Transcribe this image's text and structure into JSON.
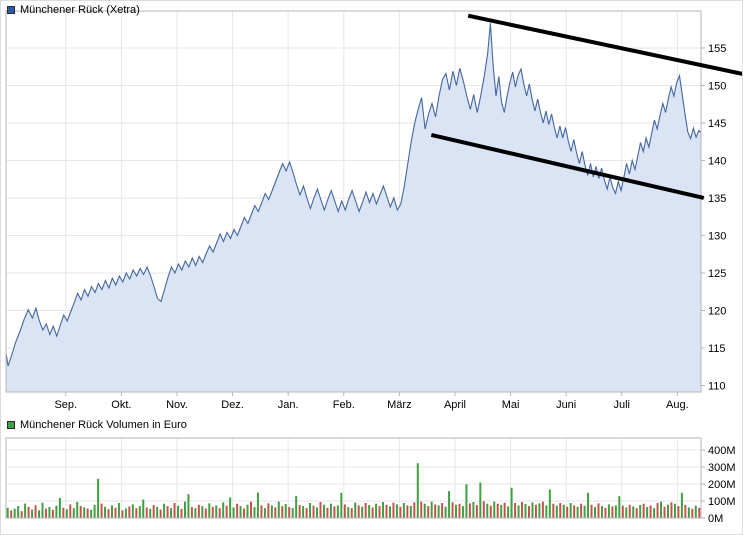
{
  "page": {
    "background": "#ffffff"
  },
  "chart_data": [
    {
      "type": "area",
      "title": "Münchener Rück (Xetra)",
      "legend_position": "top-left",
      "grid": true,
      "x_axis": {
        "labels": [
          "Sep.",
          "Okt.",
          "Nov.",
          "Dez.",
          "Jan.",
          "Feb.",
          "März",
          "April",
          "Mai",
          "Juni",
          "Juli",
          "Aug."
        ]
      },
      "y_axis": {
        "side": "right",
        "ticks": [
          110,
          115,
          120,
          125,
          130,
          135,
          140,
          145,
          150,
          155
        ],
        "range": [
          109.13,
          159.93
        ]
      },
      "series": [
        {
          "name": "Münchener Rück (Xetra)",
          "points": [
            [
              0.0,
              114.3
            ],
            [
              0.003,
              112.6
            ],
            [
              0.008,
              114.0
            ],
            [
              0.014,
              115.8
            ],
            [
              0.02,
              117.2
            ],
            [
              0.026,
              118.8
            ],
            [
              0.032,
              120.1
            ],
            [
              0.038,
              119.0
            ],
            [
              0.043,
              120.3
            ],
            [
              0.048,
              118.6
            ],
            [
              0.053,
              117.4
            ],
            [
              0.058,
              118.2
            ],
            [
              0.063,
              116.8
            ],
            [
              0.068,
              117.9
            ],
            [
              0.073,
              116.6
            ],
            [
              0.078,
              118.0
            ],
            [
              0.083,
              119.4
            ],
            [
              0.088,
              118.6
            ],
            [
              0.093,
              119.8
            ],
            [
              0.098,
              121.0
            ],
            [
              0.103,
              122.3
            ],
            [
              0.108,
              121.4
            ],
            [
              0.113,
              122.8
            ],
            [
              0.118,
              121.9
            ],
            [
              0.123,
              123.2
            ],
            [
              0.128,
              122.4
            ],
            [
              0.133,
              123.6
            ],
            [
              0.138,
              122.8
            ],
            [
              0.143,
              124.0
            ],
            [
              0.148,
              123.0
            ],
            [
              0.153,
              124.3
            ],
            [
              0.158,
              123.4
            ],
            [
              0.163,
              124.6
            ],
            [
              0.168,
              123.8
            ],
            [
              0.173,
              125.0
            ],
            [
              0.178,
              124.2
            ],
            [
              0.183,
              125.4
            ],
            [
              0.188,
              124.6
            ],
            [
              0.193,
              125.6
            ],
            [
              0.198,
              124.8
            ],
            [
              0.203,
              125.8
            ],
            [
              0.208,
              124.6
            ],
            [
              0.213,
              123.2
            ],
            [
              0.218,
              121.6
            ],
            [
              0.223,
              121.2
            ],
            [
              0.228,
              122.8
            ],
            [
              0.233,
              124.4
            ],
            [
              0.238,
              125.8
            ],
            [
              0.243,
              125.0
            ],
            [
              0.248,
              126.2
            ],
            [
              0.253,
              125.4
            ],
            [
              0.258,
              126.6
            ],
            [
              0.263,
              125.8
            ],
            [
              0.268,
              127.0
            ],
            [
              0.273,
              126.0
            ],
            [
              0.278,
              127.2
            ],
            [
              0.283,
              126.4
            ],
            [
              0.288,
              127.6
            ],
            [
              0.293,
              128.6
            ],
            [
              0.298,
              127.8
            ],
            [
              0.303,
              129.0
            ],
            [
              0.308,
              130.2
            ],
            [
              0.313,
              129.2
            ],
            [
              0.318,
              130.4
            ],
            [
              0.323,
              129.6
            ],
            [
              0.328,
              130.8
            ],
            [
              0.333,
              130.0
            ],
            [
              0.338,
              131.2
            ],
            [
              0.343,
              132.4
            ],
            [
              0.348,
              131.6
            ],
            [
              0.353,
              132.8
            ],
            [
              0.358,
              134.0
            ],
            [
              0.363,
              133.2
            ],
            [
              0.368,
              134.4
            ],
            [
              0.373,
              135.6
            ],
            [
              0.378,
              134.8
            ],
            [
              0.383,
              136.0
            ],
            [
              0.388,
              137.2
            ],
            [
              0.393,
              138.4
            ],
            [
              0.398,
              139.6
            ],
            [
              0.403,
              138.6
            ],
            [
              0.408,
              139.8
            ],
            [
              0.413,
              138.4
            ],
            [
              0.418,
              136.8
            ],
            [
              0.423,
              135.4
            ],
            [
              0.428,
              136.6
            ],
            [
              0.433,
              135.0
            ],
            [
              0.438,
              133.6
            ],
            [
              0.443,
              135.0
            ],
            [
              0.448,
              136.2
            ],
            [
              0.453,
              134.8
            ],
            [
              0.458,
              133.4
            ],
            [
              0.463,
              134.8
            ],
            [
              0.468,
              136.0
            ],
            [
              0.473,
              134.6
            ],
            [
              0.478,
              133.2
            ],
            [
              0.483,
              134.6
            ],
            [
              0.488,
              133.4
            ],
            [
              0.493,
              134.8
            ],
            [
              0.498,
              136.0
            ],
            [
              0.503,
              134.6
            ],
            [
              0.508,
              133.2
            ],
            [
              0.513,
              134.4
            ],
            [
              0.518,
              135.8
            ],
            [
              0.523,
              134.4
            ],
            [
              0.528,
              135.6
            ],
            [
              0.533,
              134.2
            ],
            [
              0.538,
              135.4
            ],
            [
              0.543,
              136.6
            ],
            [
              0.548,
              135.2
            ],
            [
              0.553,
              133.8
            ],
            [
              0.558,
              135.0
            ],
            [
              0.563,
              133.4
            ],
            [
              0.568,
              134.2
            ],
            [
              0.573,
              136.5
            ],
            [
              0.578,
              139.5
            ],
            [
              0.583,
              142.5
            ],
            [
              0.588,
              145.0
            ],
            [
              0.593,
              146.8
            ],
            [
              0.598,
              148.4
            ],
            [
              0.603,
              144.2
            ],
            [
              0.608,
              146.2
            ],
            [
              0.613,
              147.6
            ],
            [
              0.618,
              145.8
            ],
            [
              0.623,
              148.6
            ],
            [
              0.628,
              150.8
            ],
            [
              0.633,
              151.6
            ],
            [
              0.638,
              149.4
            ],
            [
              0.643,
              151.9
            ],
            [
              0.648,
              150.0
            ],
            [
              0.653,
              152.3
            ],
            [
              0.658,
              150.6
            ],
            [
              0.663,
              148.6
            ],
            [
              0.668,
              146.8
            ],
            [
              0.673,
              148.8
            ],
            [
              0.678,
              146.4
            ],
            [
              0.683,
              148.6
            ],
            [
              0.688,
              151.2
            ],
            [
              0.693,
              154.2
            ],
            [
              0.697,
              158.3
            ],
            [
              0.701,
              152.6
            ],
            [
              0.705,
              148.6
            ],
            [
              0.709,
              151.2
            ],
            [
              0.713,
              147.8
            ],
            [
              0.717,
              146.4
            ],
            [
              0.721,
              148.6
            ],
            [
              0.725,
              150.4
            ],
            [
              0.729,
              151.8
            ],
            [
              0.733,
              149.8
            ],
            [
              0.737,
              151.4
            ],
            [
              0.741,
              152.2
            ],
            [
              0.745,
              150.2
            ],
            [
              0.749,
              148.6
            ],
            [
              0.753,
              150.2
            ],
            [
              0.757,
              148.2
            ],
            [
              0.761,
              146.6
            ],
            [
              0.765,
              148.2
            ],
            [
              0.769,
              146.4
            ],
            [
              0.773,
              145.0
            ],
            [
              0.777,
              146.6
            ],
            [
              0.781,
              144.8
            ],
            [
              0.785,
              146.2
            ],
            [
              0.789,
              144.4
            ],
            [
              0.793,
              143.0
            ],
            [
              0.797,
              144.6
            ],
            [
              0.801,
              143.0
            ],
            [
              0.805,
              144.4
            ],
            [
              0.809,
              142.6
            ],
            [
              0.813,
              141.2
            ],
            [
              0.817,
              142.8
            ],
            [
              0.821,
              141.0
            ],
            [
              0.825,
              139.6
            ],
            [
              0.829,
              141.2
            ],
            [
              0.833,
              139.4
            ],
            [
              0.837,
              138.0
            ],
            [
              0.841,
              139.6
            ],
            [
              0.845,
              137.8
            ],
            [
              0.849,
              139.2
            ],
            [
              0.853,
              137.6
            ],
            [
              0.857,
              139.0
            ],
            [
              0.861,
              137.4
            ],
            [
              0.865,
              136.2
            ],
            [
              0.869,
              137.8
            ],
            [
              0.873,
              136.4
            ],
            [
              0.877,
              135.6
            ],
            [
              0.881,
              137.2
            ],
            [
              0.885,
              136.0
            ],
            [
              0.889,
              137.8
            ],
            [
              0.893,
              139.6
            ],
            [
              0.897,
              138.2
            ],
            [
              0.901,
              140.0
            ],
            [
              0.905,
              138.8
            ],
            [
              0.909,
              140.6
            ],
            [
              0.913,
              142.4
            ],
            [
              0.917,
              141.2
            ],
            [
              0.921,
              143.0
            ],
            [
              0.925,
              141.8
            ],
            [
              0.929,
              143.6
            ],
            [
              0.933,
              145.4
            ],
            [
              0.937,
              144.2
            ],
            [
              0.941,
              146.0
            ],
            [
              0.945,
              147.6
            ],
            [
              0.949,
              146.4
            ],
            [
              0.953,
              148.2
            ],
            [
              0.957,
              149.8
            ],
            [
              0.961,
              148.6
            ],
            [
              0.965,
              150.4
            ],
            [
              0.969,
              151.3
            ],
            [
              0.973,
              148.8
            ],
            [
              0.977,
              146.2
            ],
            [
              0.981,
              143.8
            ],
            [
              0.985,
              142.9
            ],
            [
              0.989,
              144.3
            ],
            [
              0.993,
              143.1
            ],
            [
              0.997,
              144.0
            ],
            [
              1.0,
              143.7
            ]
          ]
        }
      ],
      "annotations": {
        "description": "Two hand-drawn black descending trendlines forming a falling channel over the right half of the chart",
        "trendlines": [
          {
            "x1": 0.665,
            "p1": 159.3,
            "x2": 1.062,
            "p2": 151.5
          },
          {
            "x1": 0.612,
            "p1": 143.4,
            "x2": 1.004,
            "p2": 135.0
          }
        ]
      },
      "colors": {
        "line": "#44679f",
        "fill": "#dbe4f4",
        "swatch": "#2d5aa8",
        "grid": "#e6e6ed",
        "frame": "#b4b4bc",
        "trend": "#000000"
      }
    },
    {
      "type": "bar",
      "title": "Münchener Rück Volumen in Euro",
      "unit": "EUR millions",
      "sign_convention": "positive = up day (green), negative = down day (red)",
      "y_axis": {
        "side": "right",
        "ticks": [
          0,
          100,
          200,
          300,
          400
        ],
        "suffix": "M",
        "range": [
          0,
          470
        ]
      },
      "values_signed_millions": [
        60,
        -45,
        55,
        70,
        -40,
        85,
        -65,
        50,
        -75,
        45,
        90,
        -55,
        65,
        -48,
        72,
        118,
        -60,
        52,
        -80,
        58,
        95,
        -70,
        62,
        -55,
        48,
        78,
        230,
        -85,
        66,
        -52,
        74,
        -60,
        88,
        -45,
        56,
        -68,
        80,
        -58,
        70,
        108,
        -62,
        54,
        -76,
        66,
        -50,
        84,
        -70,
        58,
        -88,
        72,
        -54,
        96,
        140,
        -64,
        58,
        -78,
        70,
        -56,
        86,
        -66,
        74,
        -58,
        92,
        -72,
        120,
        62,
        -84,
        70,
        -56,
        78,
        -96,
        64,
        150,
        -74,
        58,
        -86,
        74,
        -62,
        96,
        -70,
        82,
        -64,
        58,
        130,
        -76,
        70,
        -58,
        88,
        -72,
        62,
        -94,
        78,
        -60,
        84,
        -68,
        74,
        148,
        -80,
        64,
        -58,
        90,
        -74,
        66,
        -88,
        76,
        -62,
        84,
        -70,
        94,
        -78,
        68,
        -90,
        80,
        -66,
        88,
        -74,
        70,
        -92,
        322,
        -96,
        84,
        -70,
        96,
        -80,
        74,
        -88,
        66,
        158,
        -92,
        78,
        -84,
        70,
        198,
        -86,
        94,
        -76,
        208,
        -98,
        84,
        -72,
        96,
        -84,
        76,
        -90,
        68,
        178,
        -88,
        74,
        -94,
        82,
        -70,
        92,
        -78,
        86,
        -96,
        74,
        168,
        -84,
        72,
        -88,
        78,
        -66,
        88,
        -74,
        66,
        -84,
        72,
        148,
        -78,
        64,
        -86,
        70,
        -60,
        80,
        -68,
        74,
        128,
        -72,
        62,
        -78,
        68,
        -58,
        76,
        -84,
        64,
        -74,
        58,
        -88,
        96,
        -66,
        78,
        -92,
        84,
        -70,
        148,
        -76,
        62,
        -54,
        72,
        -60
      ],
      "colors": {
        "up": "#3fa03f",
        "down": "#c85050",
        "swatch": "#3fa03f",
        "grid": "#e6e6ed",
        "frame": "#b4b4bc"
      }
    }
  ]
}
